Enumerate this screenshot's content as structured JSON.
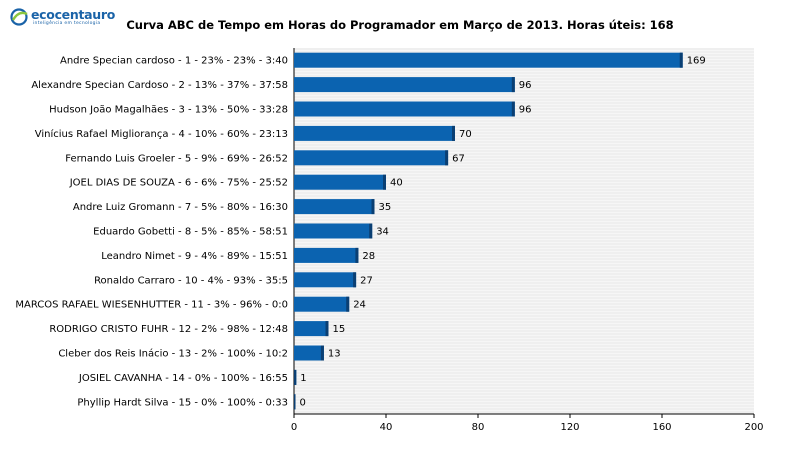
{
  "logo": {
    "name": "ecocentauro",
    "tagline": "inteligência em tecnologia"
  },
  "colors": {
    "bar": "#0b63b0",
    "bar_dark": "#0a3f73",
    "stripe": "#e8e8e8",
    "accent_green": "#8cc63f",
    "accent_blue": "#1a63a8"
  },
  "chart_data": {
    "type": "bar",
    "orientation": "horizontal",
    "title": "Curva ABC de Tempo em Horas do Programador em Março de 2013. Horas úteis: 168",
    "xlabel": "",
    "ylabel": "",
    "xlim": [
      0,
      200
    ],
    "xticks": [
      "0",
      "40",
      "80",
      "120",
      "160",
      "200"
    ],
    "grid": false,
    "categories": [
      "Andre Specian cardoso  -  1  -  23%  -  23%  -  3:40",
      "Alexandre Specian Cardoso  -  2  -  13%  -  37%  -  37:58",
      "Hudson João Magalhães  -  3  -  13%  -  50%  -  33:28",
      "Vinícius Rafael Migliorança  -  4  -  10%  -  60%  -  23:13",
      "Fernando Luis Groeler  -  5  -  9%  -  69%  -  26:52",
      "JOEL DIAS DE SOUZA  -  6  -  6%  -  75%  -  25:52",
      "Andre Luiz Gromann  -  7  -  5%  -  80%  -  16:30",
      "Eduardo Gobetti  -  8  -  5%  -  85%  -  58:51",
      "Leandro Nimet  -  9  -  4%  -  89%  -  15:51",
      "Ronaldo Carraro  -  10  -  4%  -  93%  -  35:5",
      "MARCOS RAFAEL WIESENHUTTER  -  11  -  3%  -  96%  -  0:0",
      "RODRIGO CRISTO FUHR  -  12  -  2%  -  98%  -  12:48",
      "Cleber dos Reis Inácio  -  13  -  2%  -  100%  -  10:2",
      "JOSIEL CAVANHA  -  14  -  0%  -  100%  -  16:55",
      "Phyllip Hardt Silva  -  15  -  0%  -  100%  -  0:33"
    ],
    "values": [
      169,
      96,
      96,
      70,
      67,
      40,
      35,
      34,
      28,
      27,
      24,
      15,
      13,
      1,
      0
    ]
  }
}
